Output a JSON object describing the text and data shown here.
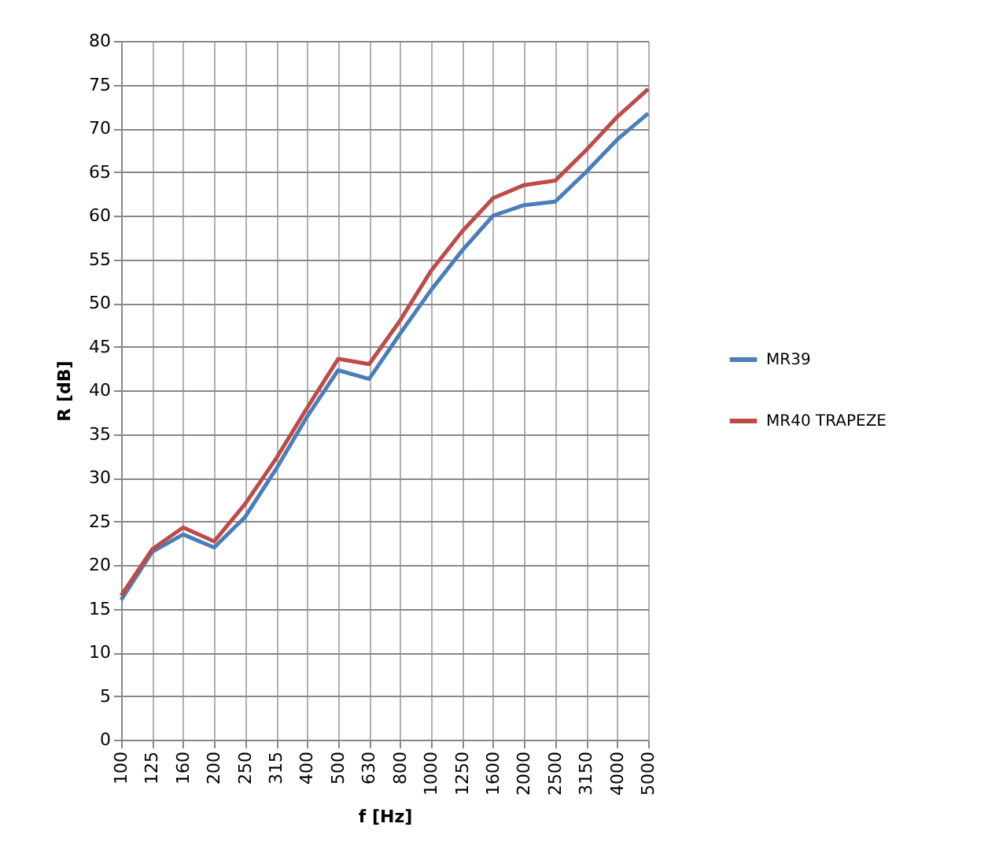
{
  "chart_data": {
    "type": "line",
    "xlabel": "f [Hz]",
    "ylabel": "R [dB]",
    "categories": [
      "100",
      "125",
      "160",
      "200",
      "250",
      "315",
      "400",
      "500",
      "630",
      "800",
      "1000",
      "1250",
      "1600",
      "2000",
      "2500",
      "3150",
      "4000",
      "5000"
    ],
    "series": [
      {
        "name": "MR39",
        "color": "#4a7ebb",
        "values": [
          16,
          21.5,
          23.5,
          22,
          25.5,
          31,
          37,
          42.3,
          41.3,
          46.5,
          51.5,
          56,
          60,
          61.2,
          61.6,
          65,
          68.7,
          71.7
        ]
      },
      {
        "name": "MR40 TRAPEZE",
        "color": "#be4b48",
        "values": [
          16.5,
          21.8,
          24.3,
          22.7,
          27,
          32.2,
          38,
          43.6,
          43,
          48,
          53.7,
          58.2,
          62,
          63.5,
          64,
          67.5,
          71.3,
          74.5
        ]
      }
    ],
    "ylim": [
      0,
      80
    ],
    "yticks": [
      0,
      5,
      10,
      15,
      20,
      25,
      30,
      35,
      40,
      45,
      50,
      55,
      60,
      65,
      70,
      75,
      80
    ],
    "grid": true,
    "legend": "right",
    "marker": "none",
    "line_style": "solid"
  }
}
